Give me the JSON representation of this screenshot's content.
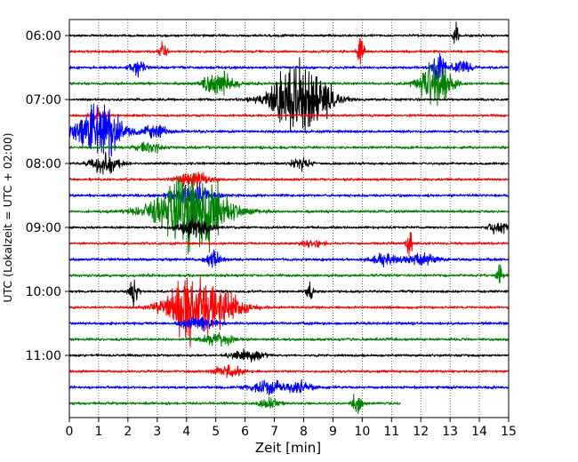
{
  "chart_data": {
    "type": "line",
    "xlabel": "Zeit  [min]",
    "ylabel": "UTC (Lokalzeit = UTC + 02:00)",
    "xlim": [
      0,
      15
    ],
    "x_ticks": [
      "0",
      "1",
      "2",
      "3",
      "4",
      "5",
      "6",
      "7",
      "8",
      "9",
      "10",
      "11",
      "12",
      "13",
      "14",
      "15"
    ],
    "y_ticks": [
      "06:00",
      "07:00",
      "08:00",
      "09:00",
      "10:00",
      "11:00"
    ],
    "x_grid": "dotted",
    "colors": [
      "#000000",
      "#ff0000",
      "#0000ff",
      "#008000"
    ],
    "traces": [
      {
        "start": "06:00",
        "color": "#000000",
        "noise": 0.9,
        "events": [
          {
            "t": 13.2,
            "amp": 10,
            "dur": 0.08
          }
        ]
      },
      {
        "start": "06:15",
        "color": "#ff0000",
        "noise": 0.9,
        "events": [
          {
            "t": 3.2,
            "amp": 8,
            "dur": 0.1
          },
          {
            "t": 9.95,
            "amp": 12,
            "dur": 0.1
          }
        ]
      },
      {
        "start": "06:30",
        "color": "#0000ff",
        "noise": 1.0,
        "events": [
          {
            "t": 2.3,
            "amp": 5,
            "dur": 0.25
          },
          {
            "t": 12.6,
            "amp": 10,
            "dur": 0.2
          },
          {
            "t": 13.4,
            "amp": 5,
            "dur": 0.3
          }
        ]
      },
      {
        "start": "06:45",
        "color": "#008000",
        "noise": 1.0,
        "events": [
          {
            "t": 5.1,
            "amp": 8,
            "dur": 0.5
          },
          {
            "t": 12.5,
            "amp": 16,
            "dur": 0.5
          }
        ]
      },
      {
        "start": "07:00",
        "color": "#000000",
        "noise": 0.9,
        "events": [
          {
            "t": 7.9,
            "amp": 28,
            "dur": 0.9
          }
        ]
      },
      {
        "start": "07:15",
        "color": "#ff0000",
        "noise": 0.9,
        "events": [
          {
            "t": 0.95,
            "amp": 5,
            "dur": 0.2
          }
        ]
      },
      {
        "start": "07:30",
        "color": "#0000ff",
        "noise": 1.0,
        "events": [
          {
            "t": 1.0,
            "amp": 20,
            "dur": 0.7
          },
          {
            "t": 2.9,
            "amp": 5,
            "dur": 0.4
          }
        ]
      },
      {
        "start": "07:45",
        "color": "#008000",
        "noise": 1.0,
        "events": [
          {
            "t": 2.7,
            "amp": 4,
            "dur": 0.4
          }
        ]
      },
      {
        "start": "08:00",
        "color": "#000000",
        "noise": 0.9,
        "events": [
          {
            "t": 1.2,
            "amp": 8,
            "dur": 0.4
          },
          {
            "t": 7.9,
            "amp": 4,
            "dur": 0.3
          }
        ]
      },
      {
        "start": "08:15",
        "color": "#ff0000",
        "noise": 0.9,
        "events": [
          {
            "t": 4.2,
            "amp": 6,
            "dur": 0.5
          }
        ]
      },
      {
        "start": "08:30",
        "color": "#0000ff",
        "noise": 1.0,
        "events": [
          {
            "t": 4.2,
            "amp": 8,
            "dur": 0.6
          }
        ]
      },
      {
        "start": "08:45",
        "color": "#008000",
        "noise": 1.0,
        "events": [
          {
            "t": 4.2,
            "amp": 30,
            "dur": 1.1
          }
        ]
      },
      {
        "start": "09:00",
        "color": "#000000",
        "noise": 0.9,
        "events": [
          {
            "t": 4.3,
            "amp": 8,
            "dur": 0.5
          },
          {
            "t": 14.7,
            "amp": 4,
            "dur": 0.4
          }
        ]
      },
      {
        "start": "09:15",
        "color": "#ff0000",
        "noise": 0.9,
        "events": [
          {
            "t": 11.6,
            "amp": 14,
            "dur": 0.08
          },
          {
            "t": 8.3,
            "amp": 4,
            "dur": 0.3
          }
        ]
      },
      {
        "start": "09:30",
        "color": "#0000ff",
        "noise": 1.0,
        "events": [
          {
            "t": 4.9,
            "amp": 5,
            "dur": 0.3
          },
          {
            "t": 10.8,
            "amp": 4,
            "dur": 0.5
          },
          {
            "t": 12.0,
            "amp": 4,
            "dur": 0.5
          }
        ]
      },
      {
        "start": "09:45",
        "color": "#008000",
        "noise": 1.0,
        "events": [
          {
            "t": 14.7,
            "amp": 10,
            "dur": 0.1
          }
        ]
      },
      {
        "start": "10:00",
        "color": "#000000",
        "noise": 0.9,
        "events": [
          {
            "t": 2.2,
            "amp": 10,
            "dur": 0.15
          },
          {
            "t": 8.2,
            "amp": 8,
            "dur": 0.1
          }
        ]
      },
      {
        "start": "10:15",
        "color": "#ff0000",
        "noise": 0.9,
        "events": [
          {
            "t": 4.5,
            "amp": 28,
            "dur": 1.0
          }
        ]
      },
      {
        "start": "10:30",
        "color": "#0000ff",
        "noise": 1.0,
        "events": [
          {
            "t": 4.4,
            "amp": 5,
            "dur": 0.5
          }
        ]
      },
      {
        "start": "10:45",
        "color": "#008000",
        "noise": 1.0,
        "events": [
          {
            "t": 5.1,
            "amp": 4,
            "dur": 0.5
          }
        ]
      },
      {
        "start": "11:00",
        "color": "#000000",
        "noise": 0.9,
        "events": [
          {
            "t": 6.1,
            "amp": 4,
            "dur": 0.5
          }
        ]
      },
      {
        "start": "11:15",
        "color": "#ff0000",
        "noise": 0.9,
        "events": [
          {
            "t": 5.4,
            "amp": 5,
            "dur": 0.4
          }
        ]
      },
      {
        "start": "11:30",
        "color": "#0000ff",
        "noise": 1.0,
        "events": [
          {
            "t": 6.8,
            "amp": 5,
            "dur": 0.6
          },
          {
            "t": 7.9,
            "amp": 4,
            "dur": 0.4
          }
        ]
      },
      {
        "start": "11:45",
        "color": "#008000",
        "noise": 1.0,
        "end_minute": 11.3,
        "events": [
          {
            "t": 9.8,
            "amp": 8,
            "dur": 0.15
          },
          {
            "t": 6.8,
            "amp": 4,
            "dur": 0.3
          }
        ]
      }
    ]
  }
}
